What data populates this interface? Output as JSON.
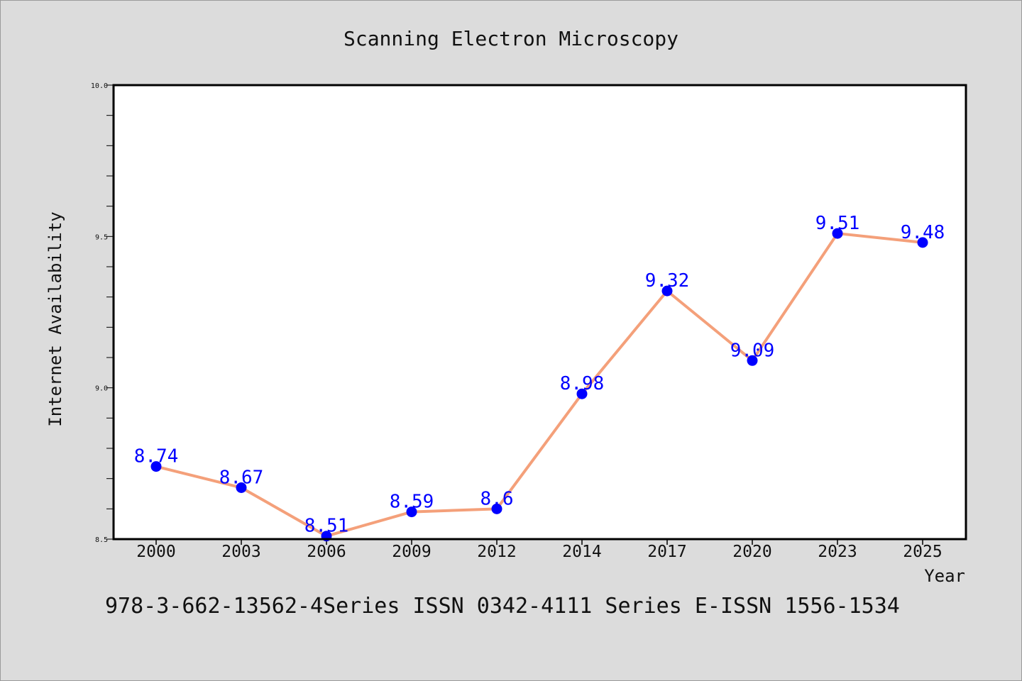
{
  "chart_data": {
    "type": "line",
    "title": "Scanning Electron Microscopy",
    "xlabel": "Year",
    "ylabel": "Internet Availability",
    "categories": [
      "2000",
      "2003",
      "2006",
      "2009",
      "2012",
      "2014",
      "2017",
      "2020",
      "2023",
      "2025"
    ],
    "series": [
      {
        "values": [
          8.74,
          8.67,
          8.51,
          8.59,
          8.6,
          8.98,
          9.32,
          9.09,
          9.51,
          9.48
        ],
        "data_labels": [
          "8.74",
          "8.67",
          "8.51",
          "8.59",
          "8.6",
          "8.98",
          "9.32",
          "9.09",
          "9.51",
          "9.48"
        ],
        "line_color": "#f4a07a",
        "marker_color": "#0000ff"
      }
    ],
    "ylim": [
      8.5,
      10.0
    ],
    "yticks": [
      "8.5",
      "9.0",
      "9.5",
      "10.0"
    ],
    "ytick_values": [
      8.5,
      9.0,
      9.5,
      10.0
    ],
    "yminor_step": 0.1,
    "grid": false,
    "legend": "none",
    "plot_background": "#ffffff",
    "figure_background": "#dcdcdc"
  },
  "footer": "978-3-662-13562-4Series ISSN 0342-4111 Series E-ISSN 1556-1534"
}
